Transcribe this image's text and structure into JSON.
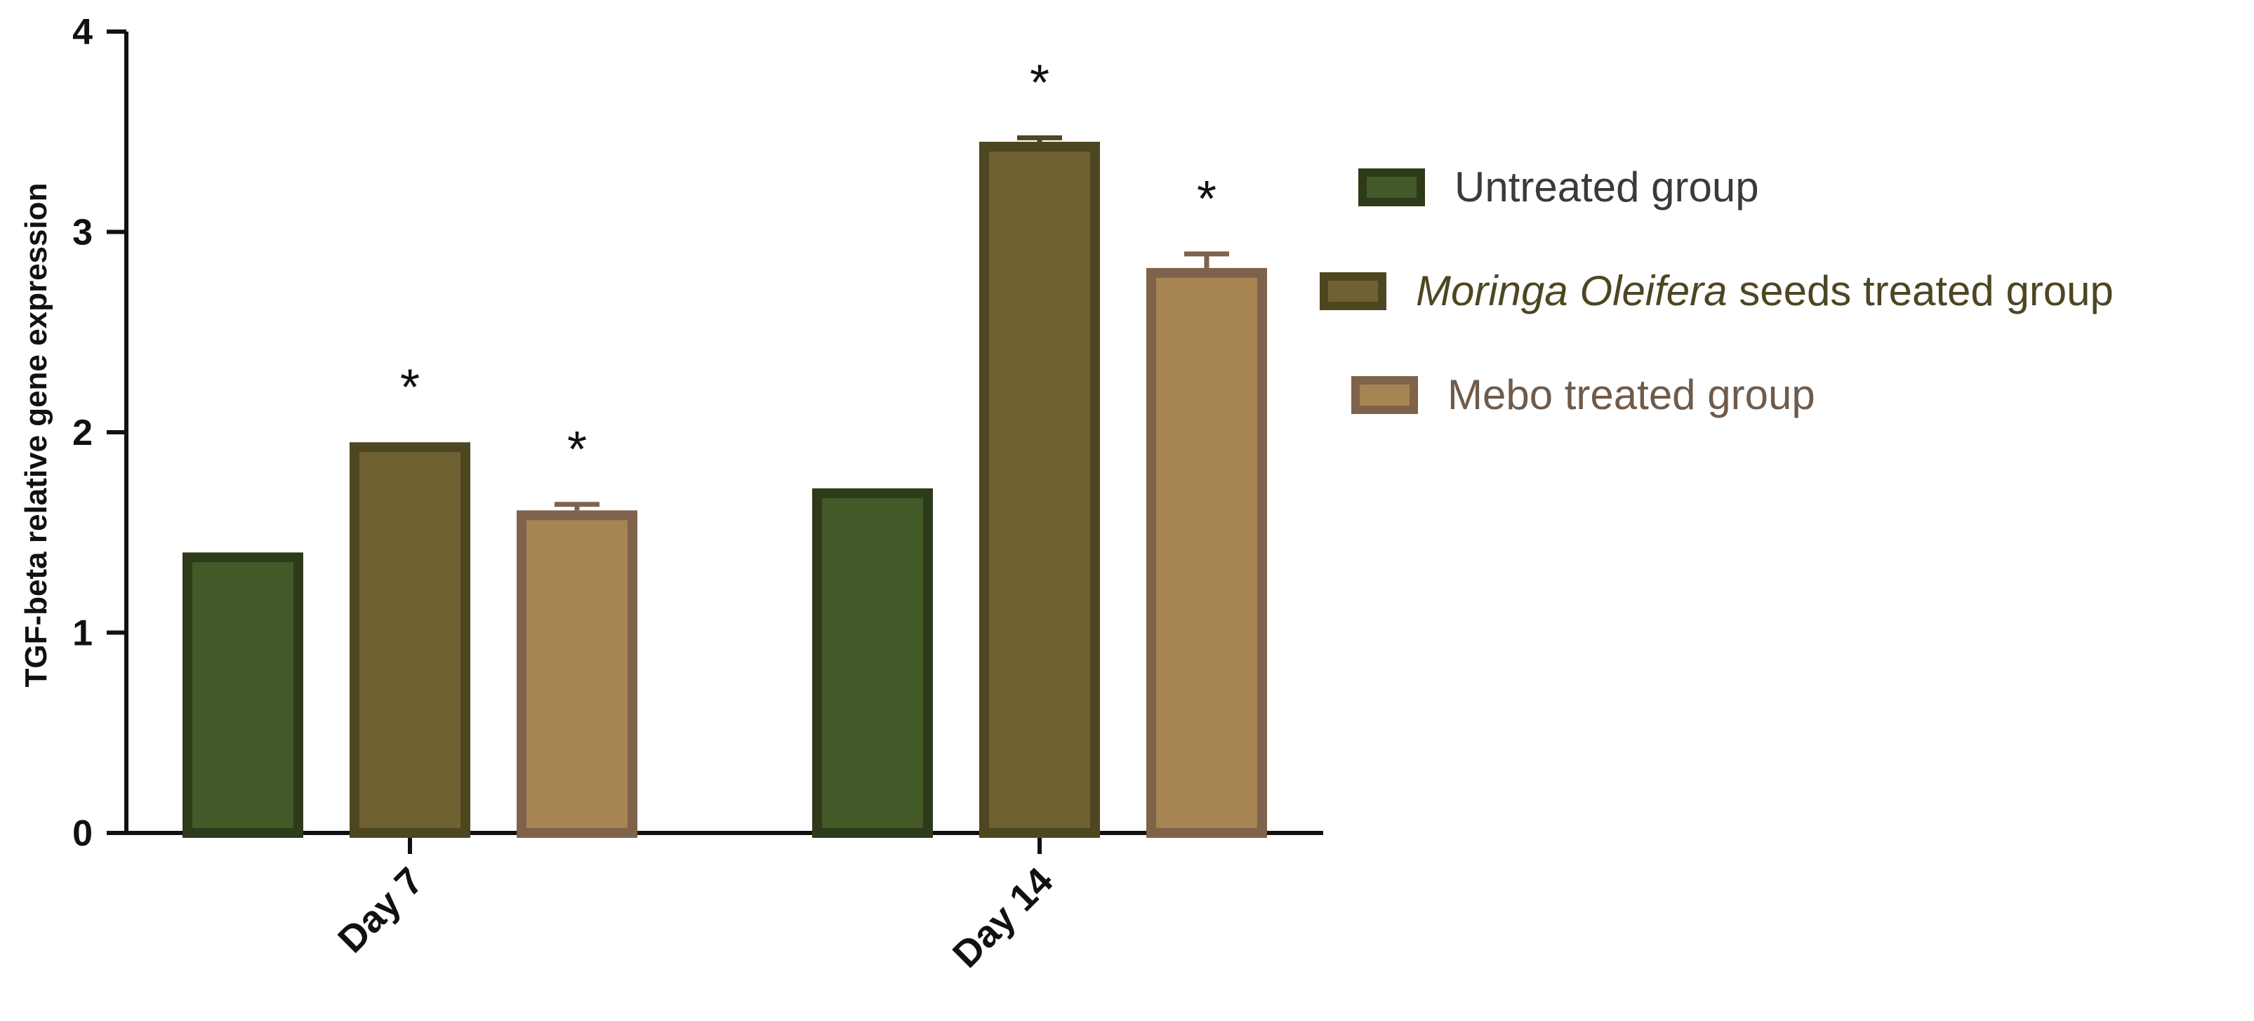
{
  "chart_data": {
    "type": "bar",
    "title": "",
    "xlabel": "",
    "ylabel": "TGF-beta relative gene expression",
    "ylim": [
      0,
      4
    ],
    "yticks": [
      0,
      1,
      2,
      3,
      4
    ],
    "categories": [
      "Day 7",
      "Day 14"
    ],
    "series": [
      {
        "name": "Untreated group",
        "name_parts": [
          {
            "text": "Untreated group",
            "italic": false
          }
        ],
        "values": [
          1.4,
          1.72
        ],
        "errors": [
          0,
          0
        ],
        "significant": [
          false,
          false
        ],
        "fill": "#435a28",
        "stroke": "#2e3a1a",
        "text_color": "#3a3a3a"
      },
      {
        "name": "Moringa Oleifera seeds treated group",
        "name_parts": [
          {
            "text": "Moringa Oleifera",
            "italic": true
          },
          {
            "text": " seeds treated group",
            "italic": false
          }
        ],
        "values": [
          1.95,
          3.45
        ],
        "errors": [
          0,
          0.02
        ],
        "significant": [
          true,
          true
        ],
        "fill": "#706132",
        "stroke": "#4e4620",
        "text_color": "#4e4622"
      },
      {
        "name": "Mebo treated group",
        "name_parts": [
          {
            "text": "Mebo treated group",
            "italic": false
          }
        ],
        "values": [
          1.61,
          2.82
        ],
        "errors": [
          0.03,
          0.07
        ],
        "significant": [
          true,
          true
        ],
        "fill": "#a68553",
        "stroke": "#7e624a",
        "text_color": "#6f5b4b"
      }
    ],
    "significance_marker": "*",
    "legend_position": "right",
    "grid": false
  }
}
